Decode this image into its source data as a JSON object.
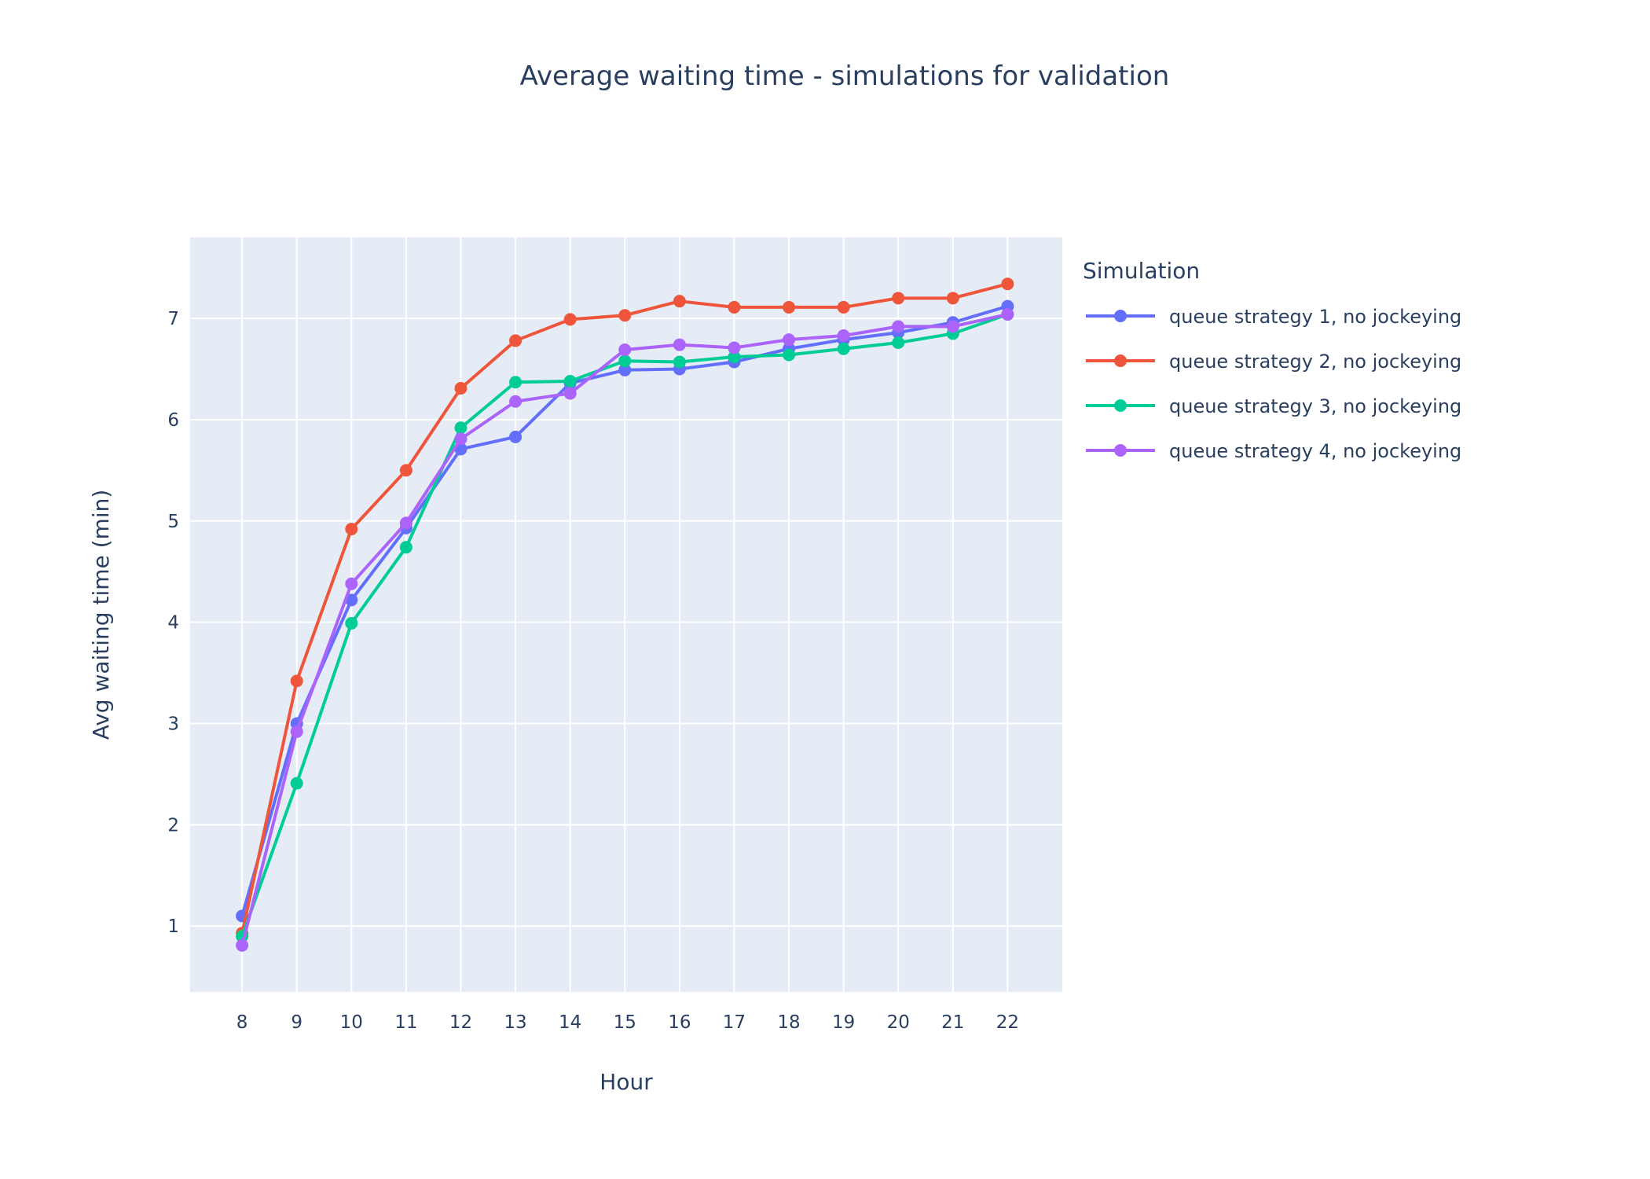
{
  "chart_data": {
    "type": "line",
    "title": "Average waiting time - simulations for validation",
    "xlabel": "Hour",
    "ylabel": "Avg waiting time (min)",
    "x": [
      8,
      9,
      10,
      11,
      12,
      13,
      14,
      15,
      16,
      17,
      18,
      19,
      20,
      21,
      22
    ],
    "xlim": [
      7.05,
      23.0
    ],
    "ylim": [
      0.35,
      7.8
    ],
    "yticks": [
      1,
      2,
      3,
      4,
      5,
      6,
      7
    ],
    "grid": true,
    "legend": {
      "title": "Simulation",
      "placement": "right"
    },
    "series": [
      {
        "name": "queue strategy 1, no jockeying",
        "color": "#636efa",
        "values": [
          1.1,
          3.0,
          4.22,
          4.93,
          5.71,
          5.83,
          6.36,
          6.49,
          6.5,
          6.57,
          6.7,
          6.79,
          6.86,
          6.96,
          7.12
        ]
      },
      {
        "name": "queue strategy 2, no jockeying",
        "color": "#ef553b",
        "values": [
          0.93,
          3.42,
          4.92,
          5.5,
          6.31,
          6.78,
          6.99,
          7.03,
          7.17,
          7.11,
          7.11,
          7.11,
          7.2,
          7.2,
          7.34
        ]
      },
      {
        "name": "queue strategy 3, no jockeying",
        "color": "#00cc96",
        "values": [
          0.9,
          2.41,
          3.99,
          4.74,
          5.92,
          6.37,
          6.38,
          6.58,
          6.57,
          6.62,
          6.64,
          6.7,
          6.76,
          6.85,
          7.04
        ]
      },
      {
        "name": "queue strategy 4, no jockeying",
        "color": "#ab63fa",
        "values": [
          0.81,
          2.92,
          4.38,
          4.98,
          5.81,
          6.18,
          6.26,
          6.69,
          6.74,
          6.71,
          6.79,
          6.83,
          6.92,
          6.92,
          7.04
        ]
      }
    ]
  },
  "plot_bg": "#e5ecf6",
  "grid_color": "#ffffff"
}
